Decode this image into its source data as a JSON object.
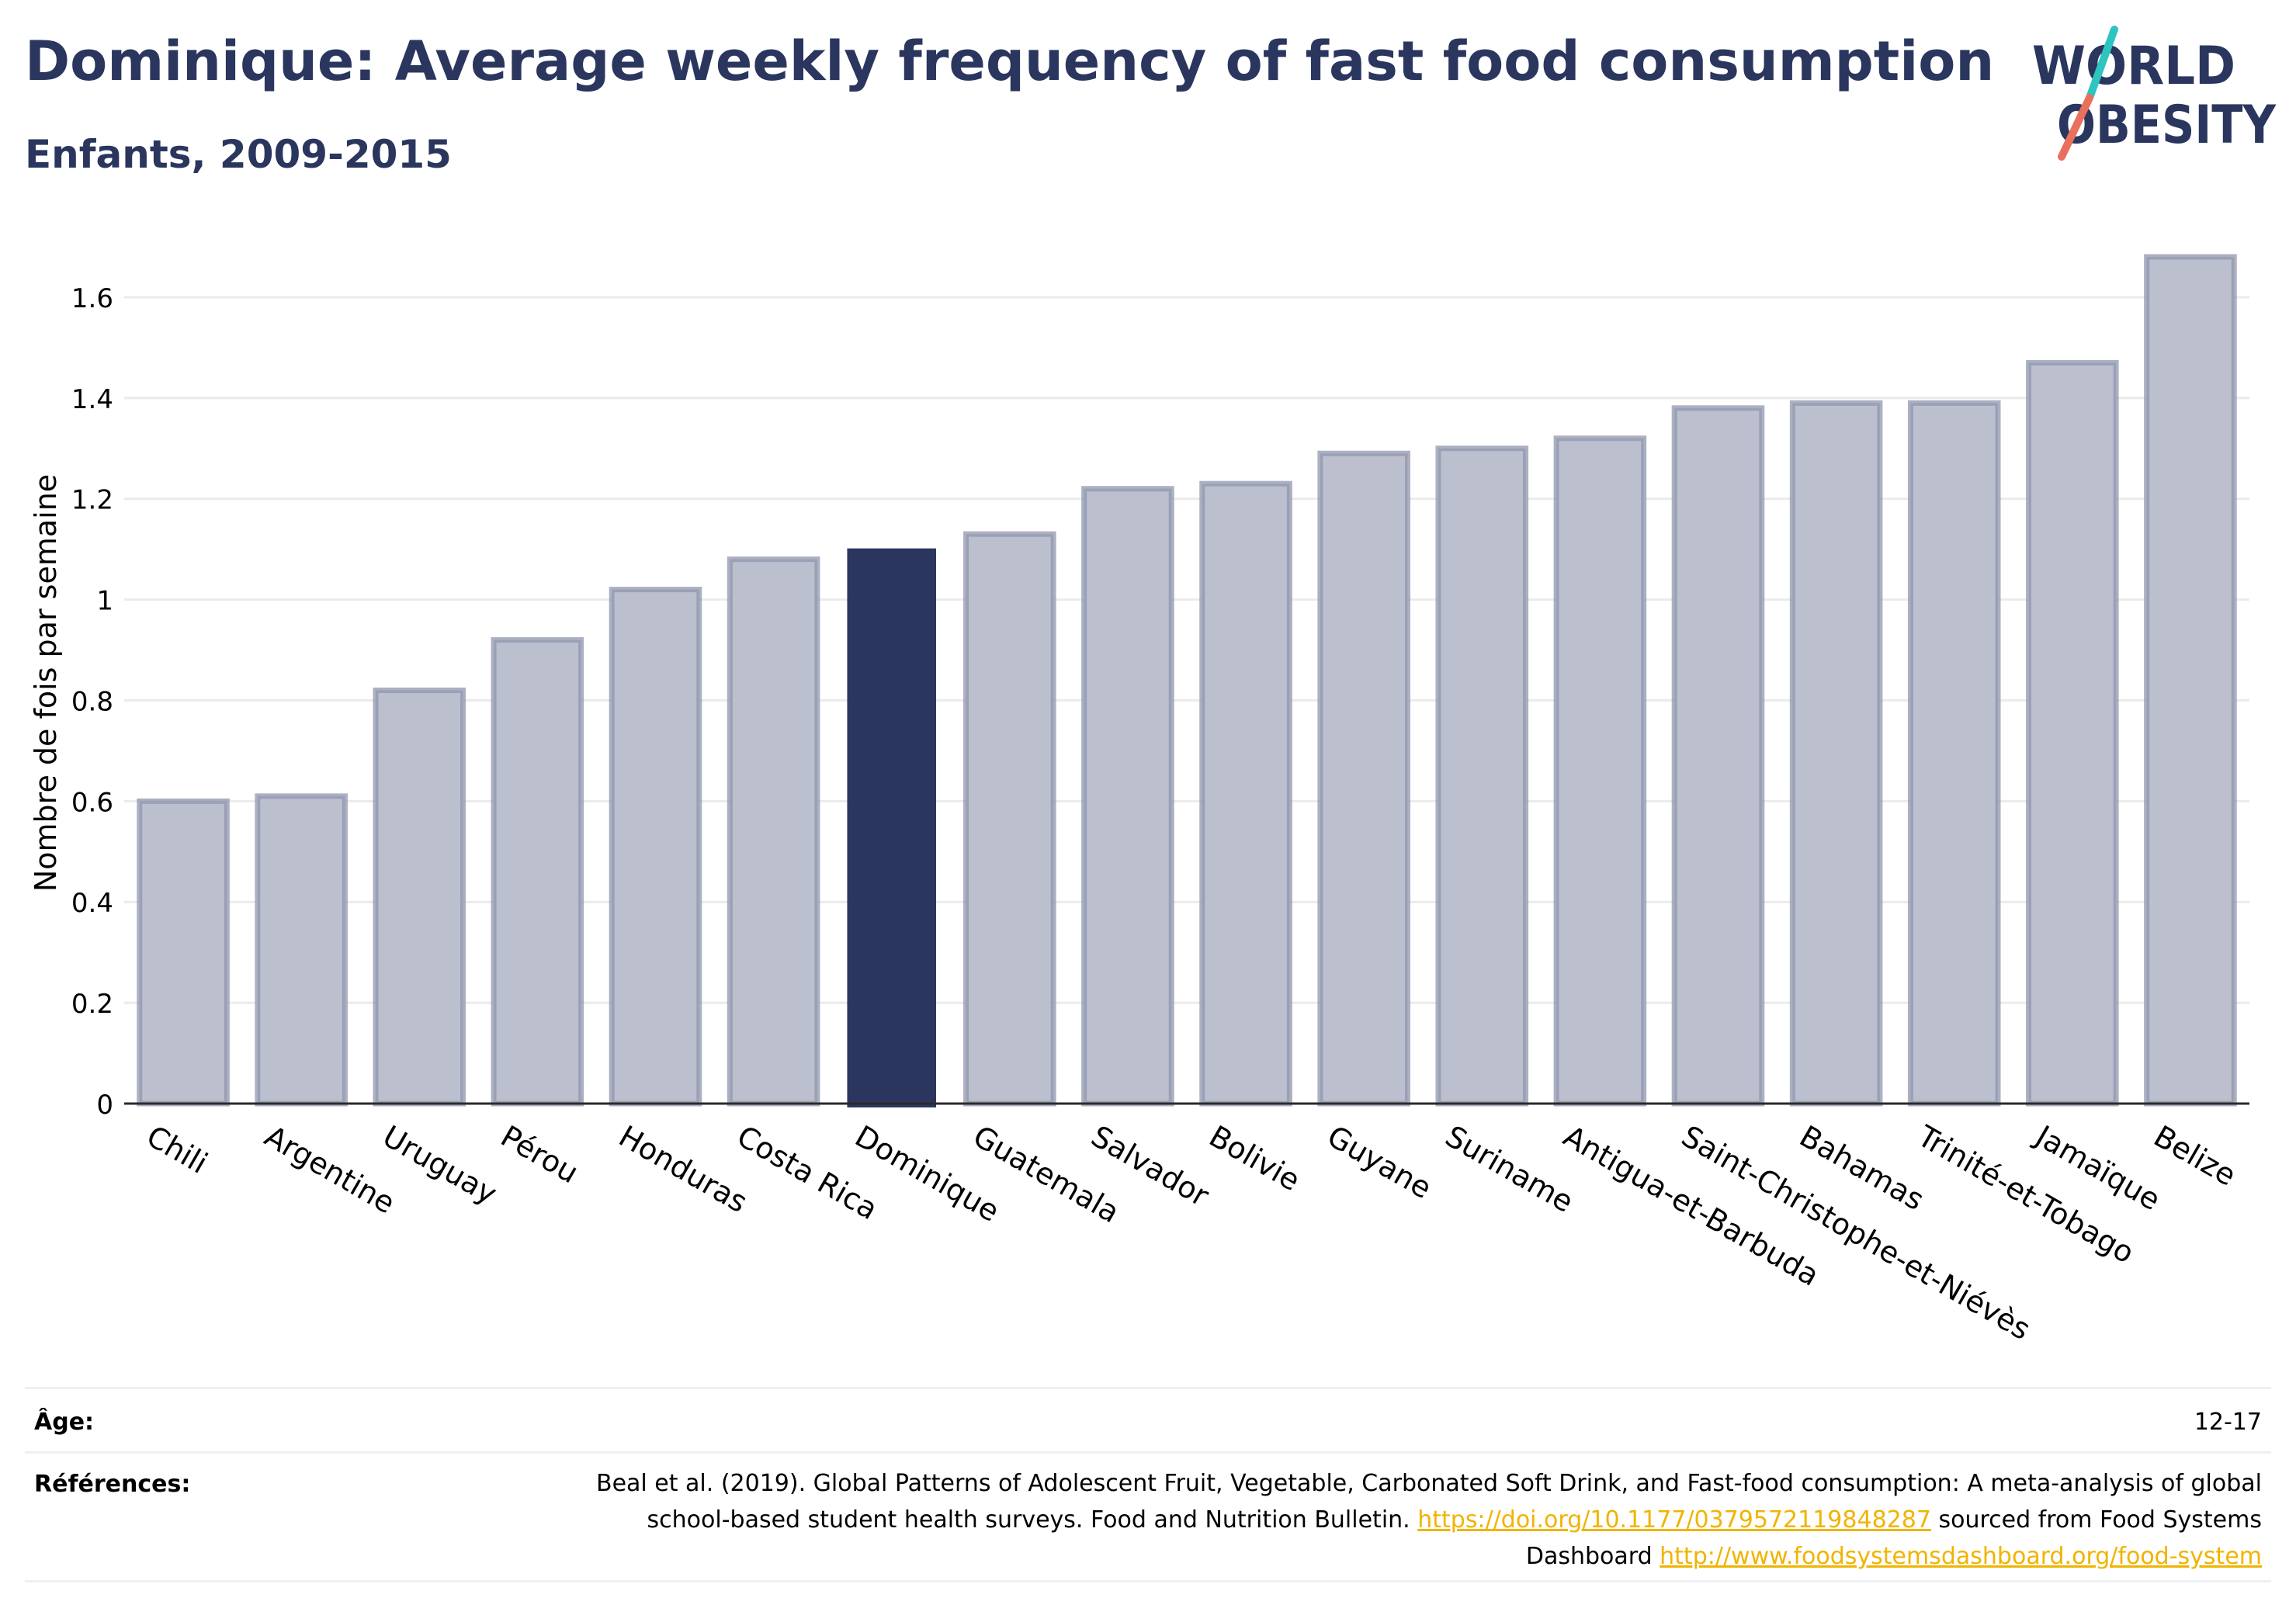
{
  "header": {
    "title": "Dominique: Average weekly frequency of fast food consumption",
    "subtitle": "Enfants, 2009-2015"
  },
  "logo": {
    "line1": "WORLD",
    "line2": "OBESITY",
    "teal": "#2ec4c0",
    "coral": "#e8705c",
    "text_color": "#2a365e"
  },
  "chart_data": {
    "type": "bar",
    "ylabel": "Nombre de fois par semaine",
    "xlabel": "",
    "ylim": [
      0,
      1.7
    ],
    "yticks": [
      "0",
      "0.2",
      "0.4",
      "0.6",
      "0.8",
      "1",
      "1.2",
      "1.4",
      "1.6"
    ],
    "ytick_values": [
      0,
      0.2,
      0.4,
      0.6,
      0.8,
      1,
      1.2,
      1.4,
      1.6
    ],
    "grid": true,
    "highlight": "Dominique",
    "categories": [
      "Chili",
      "Argentine",
      "Uruguay",
      "Pérou",
      "Honduras",
      "Costa Rica",
      "Dominique",
      "Guatemala",
      "Salvador",
      "Bolivie",
      "Guyane",
      "Suriname",
      "Antigua-et-Barbuda",
      "Saint-Christophe-et-Niévès",
      "Bahamas",
      "Trinité-et-Tobago",
      "Jamaïque",
      "Belize"
    ],
    "values": [
      0.6,
      0.61,
      0.82,
      0.92,
      1.02,
      1.08,
      1.1,
      1.13,
      1.22,
      1.23,
      1.29,
      1.3,
      1.32,
      1.38,
      1.39,
      1.39,
      1.47,
      1.68
    ],
    "colors": {
      "bar_fill": "#bcc0ce",
      "bar_stroke": "#8f95ad",
      "highlight_fill": "#2a365e",
      "grid": "#ebebeb",
      "axis": "#2a2a2a"
    }
  },
  "meta": {
    "age_label": "Âge:",
    "age_value": "12-17",
    "refs_label": "Références:",
    "refs_text1": "Beal et al. (2019). Global Patterns of Adolescent Fruit, Vegetable, Carbonated Soft Drink, and Fast-food consumption: A meta-analysis of global school-based student health surveys. Food and Nutrition Bulletin. ",
    "refs_link1": "https://doi.org/10.1177/0379572119848287",
    "refs_text2": " sourced from Food Systems Dashboard ",
    "refs_link2": "http://www.foodsystemsdashboard.org/food-system"
  }
}
